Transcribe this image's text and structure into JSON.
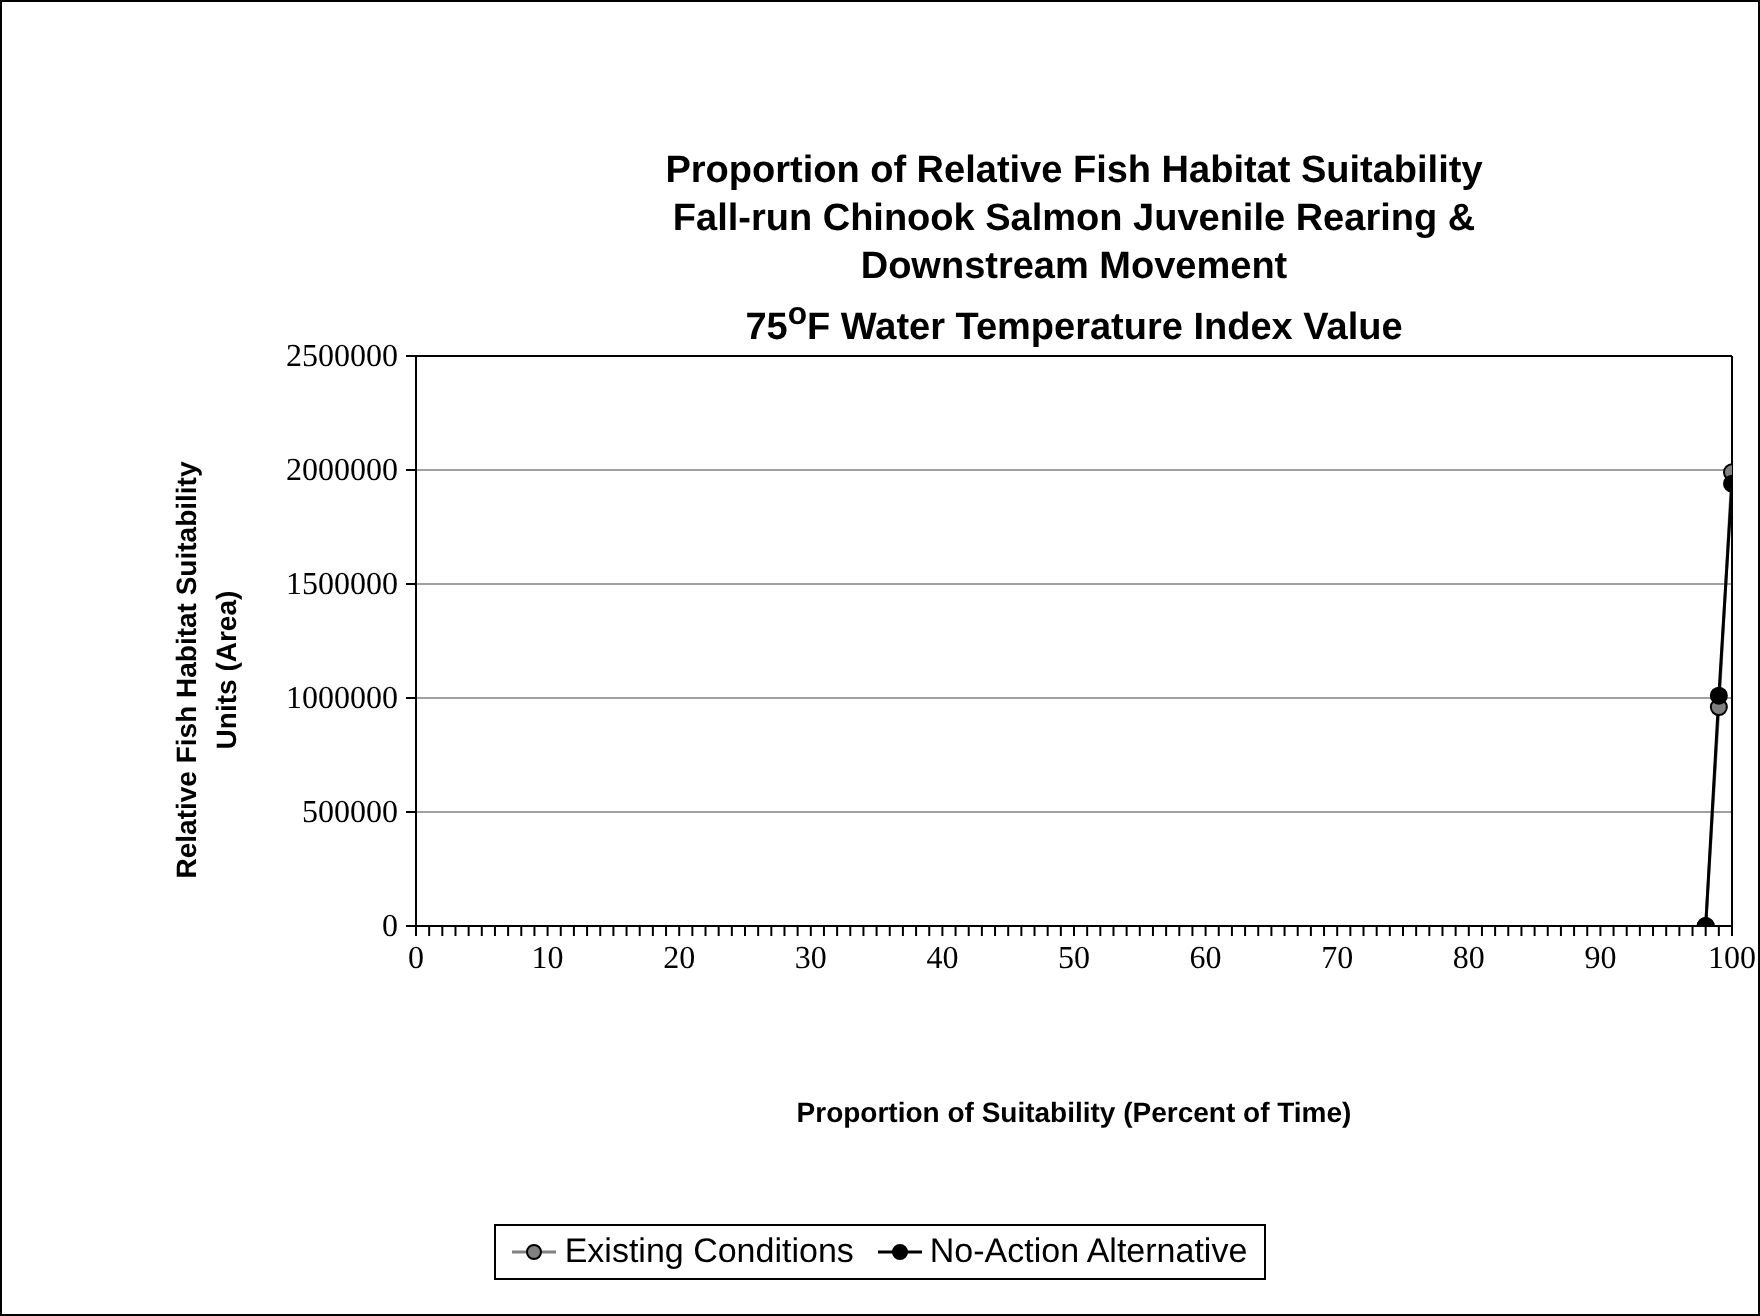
{
  "chart_data": {
    "type": "line",
    "title": "Proportion of Relative Fish Habitat Suitability\nFall-run Chinook Salmon Juvenile Rearing &\nDownstream Movement\n75$^{o}$F Water Temperature Index Value",
    "xlabel": "Proportion of Suitability (Percent of Time)",
    "ylabel": "Relative Fish Habitat Suitability\nUnits (Area)",
    "x": [
      98,
      99,
      100
    ],
    "series": [
      {
        "name": "Existing Conditions",
        "color": "#808080",
        "values": [
          0,
          960000,
          1990000
        ]
      },
      {
        "name": "No-Action Alternative",
        "color": "#000000",
        "values": [
          0,
          1010000,
          1940000
        ]
      }
    ],
    "xlim": [
      0,
      100
    ],
    "xticks": [
      0,
      {
        "value": 1,
        "label": null
      },
      {
        "value": 2,
        "label": null
      },
      {
        "value": 3,
        "label": null
      },
      {
        "value": 4,
        "label": null
      },
      {
        "value": 5,
        "label": null
      },
      {
        "value": 6,
        "label": null
      },
      {
        "value": 7,
        "label": null
      },
      {
        "value": 8,
        "label": null
      },
      {
        "value": 9,
        "label": null
      },
      10,
      {
        "value": 11,
        "label": null
      },
      {
        "value": 12,
        "label": null
      },
      {
        "value": 13,
        "label": null
      },
      {
        "value": 14,
        "label": null
      },
      {
        "value": 15,
        "label": null
      },
      {
        "value": 16,
        "label": null
      },
      {
        "value": 17,
        "label": null
      },
      {
        "value": 18,
        "label": null
      },
      {
        "value": 19,
        "label": null
      },
      20,
      {
        "value": 21,
        "label": null
      },
      {
        "value": 22,
        "label": null
      },
      {
        "value": 23,
        "label": null
      },
      {
        "value": 24,
        "label": null
      },
      {
        "value": 25,
        "label": null
      },
      {
        "value": 26,
        "label": null
      },
      {
        "value": 27,
        "label": null
      },
      {
        "value": 28,
        "label": null
      },
      {
        "value": 29,
        "label": null
      },
      30,
      {
        "value": 31,
        "label": null
      },
      {
        "value": 32,
        "label": null
      },
      {
        "value": 33,
        "label": null
      },
      {
        "value": 34,
        "label": null
      },
      {
        "value": 35,
        "label": null
      },
      {
        "value": 36,
        "label": null
      },
      {
        "value": 37,
        "label": null
      },
      {
        "value": 38,
        "label": null
      },
      {
        "value": 39,
        "label": null
      },
      40,
      {
        "value": 41,
        "label": null
      },
      {
        "value": 42,
        "label": null
      },
      {
        "value": 43,
        "label": null
      },
      {
        "value": 44,
        "label": null
      },
      {
        "value": 45,
        "label": null
      },
      {
        "value": 46,
        "label": null
      },
      {
        "value": 47,
        "label": null
      },
      {
        "value": 48,
        "label": null
      },
      {
        "value": 49,
        "label": null
      },
      50,
      {
        "value": 51,
        "label": null
      },
      {
        "value": 52,
        "label": null
      },
      {
        "value": 53,
        "label": null
      },
      {
        "value": 54,
        "label": null
      },
      {
        "value": 55,
        "label": null
      },
      {
        "value": 56,
        "label": null
      },
      {
        "value": 57,
        "label": null
      },
      {
        "value": 58,
        "label": null
      },
      {
        "value": 59,
        "label": null
      },
      60,
      {
        "value": 61,
        "label": null
      },
      {
        "value": 62,
        "label": null
      },
      {
        "value": 63,
        "label": null
      },
      {
        "value": 64,
        "label": null
      },
      {
        "value": 65,
        "label": null
      },
      {
        "value": 66,
        "label": null
      },
      {
        "value": 67,
        "label": null
      },
      {
        "value": 68,
        "label": null
      },
      {
        "value": 69,
        "label": null
      },
      70,
      {
        "value": 71,
        "label": null
      },
      {
        "value": 72,
        "label": null
      },
      {
        "value": 73,
        "label": null
      },
      {
        "value": 74,
        "label": null
      },
      {
        "value": 75,
        "label": null
      },
      {
        "value": 76,
        "label": null
      },
      {
        "value": 77,
        "label": null
      },
      {
        "value": 78,
        "label": null
      },
      {
        "value": 79,
        "label": null
      },
      80,
      {
        "value": 81,
        "label": null
      },
      {
        "value": 82,
        "label": null
      },
      {
        "value": 83,
        "label": null
      },
      {
        "value": 84,
        "label": null
      },
      {
        "value": 85,
        "label": null
      },
      {
        "value": 86,
        "label": null
      },
      {
        "value": 87,
        "label": null
      },
      {
        "value": 88,
        "label": null
      },
      {
        "value": 89,
        "label": null
      },
      90,
      {
        "value": 91,
        "label": null
      },
      {
        "value": 92,
        "label": null
      },
      {
        "value": 93,
        "label": null
      },
      {
        "value": 94,
        "label": null
      },
      {
        "value": 95,
        "label": null
      },
      {
        "value": 96,
        "label": null
      },
      {
        "value": 97,
        "label": null
      },
      {
        "value": 98,
        "label": null
      },
      {
        "value": 99,
        "label": null
      },
      100
    ],
    "ylim": [
      0,
      2500000
    ],
    "yticks": [
      0,
      500000,
      1000000,
      1500000,
      2000000,
      2500000
    ],
    "grid": "y",
    "legend": "bottom",
    "marker": "circle",
    "line_style": "solid"
  }
}
